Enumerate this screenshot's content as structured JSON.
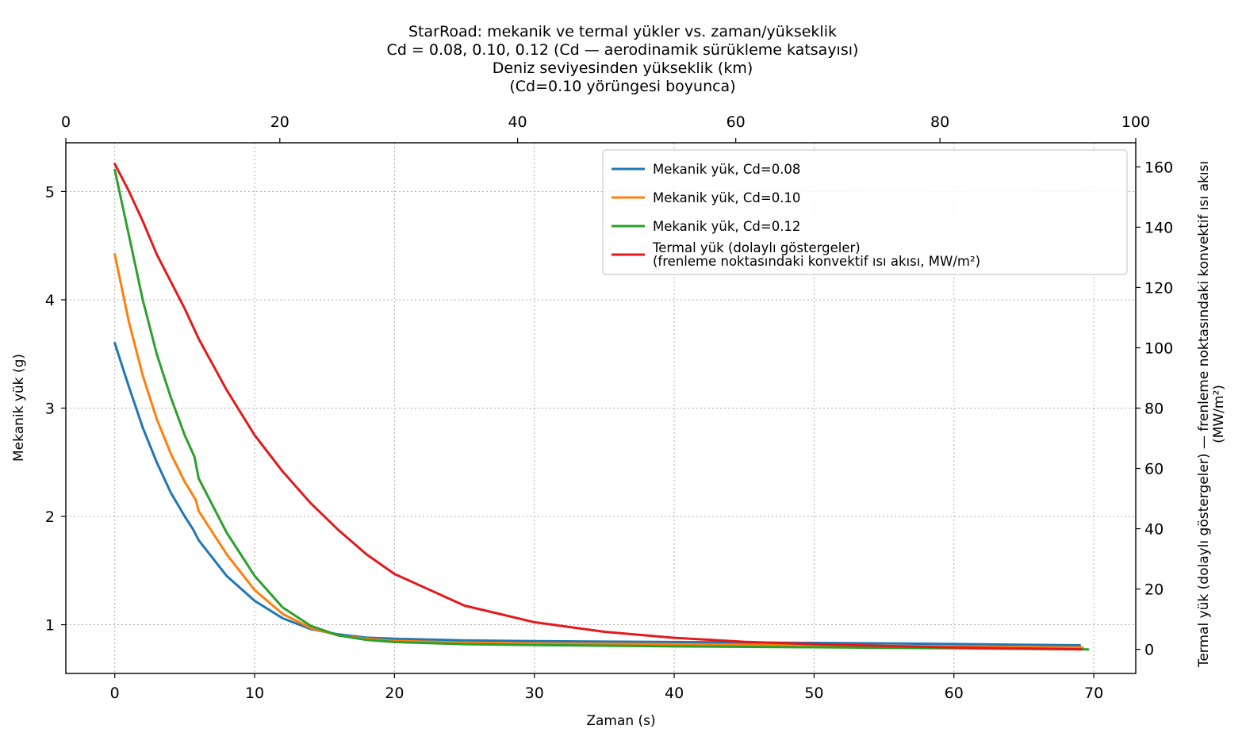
{
  "chart_data": {
    "type": "line",
    "title": [
      "StarRoad: mekanik ve termal yükler vs. zaman/yükseklik",
      "Cd = 0.08, 0.10, 0.12 (Cd — aerodinamik sürükleme katsayısı)",
      "Deniz seviyesinden yükseklik (km)",
      "(Cd=0.10 yörüngesi boyunca)"
    ],
    "xlabel": "Zaman (s)",
    "ylabel": "Mekanik yük (g)",
    "y2label": [
      "Termal yük (dolaylı göstergeler) — frenleme noktasındaki konvektif ısı akısı",
      "(MW/m²)"
    ],
    "xlim": [
      -3.5,
      73
    ],
    "ylim": [
      0.55,
      5.45
    ],
    "y2lim": [
      -8,
      168
    ],
    "top_axis": {
      "label": "Deniz seviyesinden yükseklik (km)",
      "ticks": [
        0,
        20,
        40,
        60,
        80,
        100
      ],
      "tick_time_positions": [
        -3.5,
        11.8,
        28.8,
        44.4,
        59.0,
        73.0
      ]
    },
    "xticks": [
      0,
      10,
      20,
      30,
      40,
      50,
      60,
      70
    ],
    "yticks": [
      1,
      2,
      3,
      4,
      5
    ],
    "y2ticks": [
      0,
      20,
      40,
      60,
      80,
      100,
      120,
      140,
      160
    ],
    "grid": true,
    "legend_position": "top-right",
    "series": [
      {
        "name": "Mekanik yük, Cd=0.08",
        "axis": "left",
        "color": "#1f77b4",
        "x": [
          0,
          1,
          2,
          3,
          4,
          5,
          5.6,
          6,
          8,
          10,
          12,
          14,
          16,
          18,
          20,
          25,
          30,
          40,
          50,
          60,
          69
        ],
        "y": [
          3.6,
          3.2,
          2.82,
          2.5,
          2.22,
          2.0,
          1.88,
          1.78,
          1.45,
          1.22,
          1.06,
          0.96,
          0.91,
          0.88,
          0.87,
          0.855,
          0.848,
          0.84,
          0.832,
          0.822,
          0.81
        ]
      },
      {
        "name": "Mekanik yük, Cd=0.10",
        "axis": "left",
        "color": "#ff7f0e",
        "x": [
          0,
          1,
          2,
          3,
          4,
          5,
          5.8,
          6,
          8,
          10,
          12,
          14,
          16,
          18,
          20,
          25,
          30,
          40,
          50,
          60,
          69.2
        ],
        "y": [
          4.42,
          3.8,
          3.3,
          2.9,
          2.58,
          2.32,
          2.15,
          2.05,
          1.65,
          1.32,
          1.1,
          0.97,
          0.9,
          0.87,
          0.85,
          0.835,
          0.828,
          0.82,
          0.81,
          0.8,
          0.79
        ]
      },
      {
        "name": "Mekanik yük, Cd=0.12",
        "axis": "left",
        "color": "#2ca02c",
        "x": [
          0,
          1,
          2,
          3,
          4,
          5,
          5.7,
          6,
          8,
          10,
          12,
          14,
          16,
          18,
          20,
          25,
          30,
          40,
          50,
          60,
          69.6
        ],
        "y": [
          5.2,
          4.6,
          4.0,
          3.5,
          3.1,
          2.75,
          2.55,
          2.35,
          1.85,
          1.45,
          1.16,
          0.99,
          0.9,
          0.86,
          0.84,
          0.82,
          0.812,
          0.8,
          0.792,
          0.782,
          0.772
        ]
      },
      {
        "name": "Termal yük (dolaylı göstergeler)\n(frenleme noktasındaki konvektif ısı akısı, MW/m²)",
        "axis": "right",
        "color": "#e31a1c",
        "x": [
          0,
          1,
          2,
          3,
          4,
          5,
          5.6,
          6,
          8,
          10,
          12,
          14,
          16,
          18,
          20,
          25,
          30,
          35,
          40,
          45,
          50,
          55,
          60,
          65,
          69.1
        ],
        "y": [
          161,
          152,
          142,
          131,
          122,
          113,
          107,
          103,
          86,
          71,
          59,
          48.5,
          39.5,
          31.5,
          25,
          14.5,
          9,
          5.8,
          3.8,
          2.5,
          1.7,
          1.1,
          0.6,
          0.3,
          0
        ]
      }
    ]
  }
}
